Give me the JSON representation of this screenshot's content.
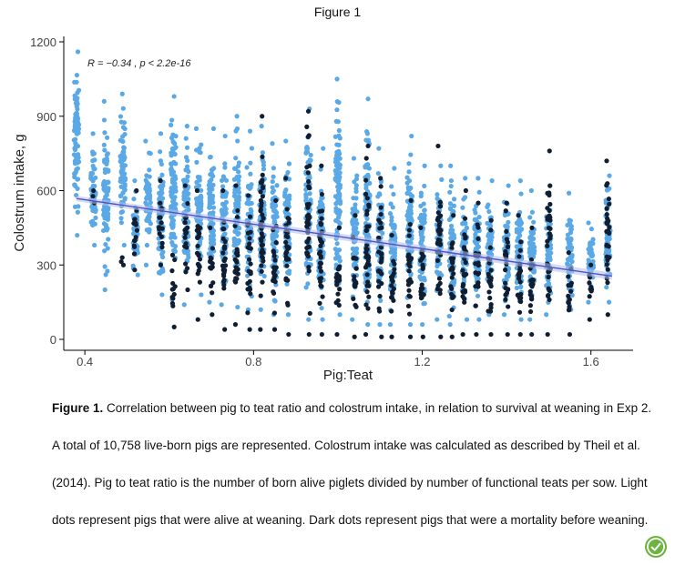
{
  "figure_heading": "Figure 1",
  "caption": {
    "label": "Figure 1.",
    "text": " Correlation between pig to teat ratio and colostrum intake, in relation to survival at weaning in Exp 2. A total of 10,758 live-born pigs are represented. Colostrum intake was calculated as described by Theil et al. (2014). Pig to teat ratio is the number of born alive piglets divided by number of functional teats per sow. Light dots represent pigs that were alive at weaning. Dark dots represent pigs that were a mortality before weaning."
  },
  "badge_icon": "leaf-check-icon",
  "colors": {
    "alive": "#5aa9e6",
    "dead": "#0f1e33",
    "regression": "#4a56c8",
    "ribbon": "#b7bde8",
    "badge": "#6cb33f"
  },
  "chart_data": {
    "type": "scatter",
    "title": "",
    "annotation": "R = −0.34 , p < 2.2e-16",
    "xlabel": "Pig:Teat",
    "ylabel": "Colostrum intake, g",
    "xlim": [
      0.35,
      1.7
    ],
    "ylim": [
      0,
      1200
    ],
    "x_ticks": [
      0.4,
      0.8,
      1.2,
      1.6
    ],
    "x_tick_labels": [
      "0.4",
      "0.8",
      "1.2",
      "1.6"
    ],
    "y_ticks": [
      0,
      300,
      600,
      900,
      1200
    ],
    "y_tick_labels": [
      "0",
      "300",
      "600",
      "900",
      "1200"
    ],
    "grid": false,
    "regression": {
      "x": [
        0.38,
        1.65
      ],
      "y": [
        568,
        255
      ]
    },
    "series": [
      {
        "name": "Alive at weaning",
        "color": "#5aa9e6",
        "columns": [
          {
            "x": 0.38,
            "min": 420,
            "max": 1160
          },
          {
            "x": 0.42,
            "min": 380,
            "max": 830
          },
          {
            "x": 0.45,
            "min": 200,
            "max": 960
          },
          {
            "x": 0.49,
            "min": 380,
            "max": 990
          },
          {
            "x": 0.52,
            "min": 260,
            "max": 640
          },
          {
            "x": 0.55,
            "min": 300,
            "max": 800
          },
          {
            "x": 0.58,
            "min": 180,
            "max": 830
          },
          {
            "x": 0.61,
            "min": 160,
            "max": 980
          },
          {
            "x": 0.64,
            "min": 140,
            "max": 860
          },
          {
            "x": 0.67,
            "min": 180,
            "max": 850
          },
          {
            "x": 0.7,
            "min": 150,
            "max": 850
          },
          {
            "x": 0.73,
            "min": 140,
            "max": 820
          },
          {
            "x": 0.76,
            "min": 130,
            "max": 900
          },
          {
            "x": 0.79,
            "min": 120,
            "max": 840
          },
          {
            "x": 0.82,
            "min": 120,
            "max": 860
          },
          {
            "x": 0.85,
            "min": 100,
            "max": 790
          },
          {
            "x": 0.88,
            "min": 100,
            "max": 800
          },
          {
            "x": 0.93,
            "min": 80,
            "max": 930
          },
          {
            "x": 0.96,
            "min": 80,
            "max": 770
          },
          {
            "x": 1.0,
            "min": 100,
            "max": 1050
          },
          {
            "x": 1.04,
            "min": 80,
            "max": 730
          },
          {
            "x": 1.07,
            "min": 60,
            "max": 970
          },
          {
            "x": 1.1,
            "min": 60,
            "max": 770
          },
          {
            "x": 1.13,
            "min": 60,
            "max": 690
          },
          {
            "x": 1.17,
            "min": 60,
            "max": 820
          },
          {
            "x": 1.2,
            "min": 60,
            "max": 700
          },
          {
            "x": 1.24,
            "min": 80,
            "max": 700
          },
          {
            "x": 1.27,
            "min": 60,
            "max": 700
          },
          {
            "x": 1.3,
            "min": 80,
            "max": 650
          },
          {
            "x": 1.33,
            "min": 80,
            "max": 650
          },
          {
            "x": 1.36,
            "min": 100,
            "max": 640
          },
          {
            "x": 1.4,
            "min": 100,
            "max": 620
          },
          {
            "x": 1.43,
            "min": 80,
            "max": 640
          },
          {
            "x": 1.46,
            "min": 80,
            "max": 600
          },
          {
            "x": 1.5,
            "min": 100,
            "max": 620
          },
          {
            "x": 1.55,
            "min": 120,
            "max": 590
          },
          {
            "x": 1.6,
            "min": 150,
            "max": 470
          },
          {
            "x": 1.64,
            "min": 150,
            "max": 660
          }
        ]
      },
      {
        "name": "Mortality before weaning",
        "color": "#0f1e33",
        "columns": [
          {
            "x": 0.42,
            "min": 550,
            "max": 600
          },
          {
            "x": 0.49,
            "min": 300,
            "max": 330
          },
          {
            "x": 0.52,
            "min": 280,
            "max": 600
          },
          {
            "x": 0.58,
            "min": 300,
            "max": 640
          },
          {
            "x": 0.61,
            "min": 50,
            "max": 340
          },
          {
            "x": 0.64,
            "min": 200,
            "max": 620
          },
          {
            "x": 0.67,
            "min": 80,
            "max": 600
          },
          {
            "x": 0.7,
            "min": 100,
            "max": 450
          },
          {
            "x": 0.73,
            "min": 40,
            "max": 600
          },
          {
            "x": 0.76,
            "min": 60,
            "max": 620
          },
          {
            "x": 0.79,
            "min": 40,
            "max": 580
          },
          {
            "x": 0.82,
            "min": 40,
            "max": 900
          },
          {
            "x": 0.85,
            "min": 40,
            "max": 560
          },
          {
            "x": 0.88,
            "min": 20,
            "max": 650
          },
          {
            "x": 0.93,
            "min": 20,
            "max": 920
          },
          {
            "x": 0.96,
            "min": 20,
            "max": 700
          },
          {
            "x": 1.0,
            "min": 20,
            "max": 450
          },
          {
            "x": 1.04,
            "min": 10,
            "max": 500
          },
          {
            "x": 1.07,
            "min": 20,
            "max": 780
          },
          {
            "x": 1.1,
            "min": 10,
            "max": 650
          },
          {
            "x": 1.13,
            "min": 10,
            "max": 420
          },
          {
            "x": 1.17,
            "min": 10,
            "max": 560
          },
          {
            "x": 1.2,
            "min": 10,
            "max": 450
          },
          {
            "x": 1.24,
            "min": 10,
            "max": 780
          },
          {
            "x": 1.27,
            "min": 10,
            "max": 500
          },
          {
            "x": 1.3,
            "min": 20,
            "max": 600
          },
          {
            "x": 1.33,
            "min": 20,
            "max": 550
          },
          {
            "x": 1.36,
            "min": 20,
            "max": 480
          },
          {
            "x": 1.4,
            "min": 20,
            "max": 550
          },
          {
            "x": 1.43,
            "min": 20,
            "max": 500
          },
          {
            "x": 1.46,
            "min": 20,
            "max": 450
          },
          {
            "x": 1.5,
            "min": 20,
            "max": 760
          },
          {
            "x": 1.55,
            "min": 20,
            "max": 350
          },
          {
            "x": 1.6,
            "min": 80,
            "max": 300
          },
          {
            "x": 1.64,
            "min": 100,
            "max": 720
          }
        ]
      }
    ]
  }
}
